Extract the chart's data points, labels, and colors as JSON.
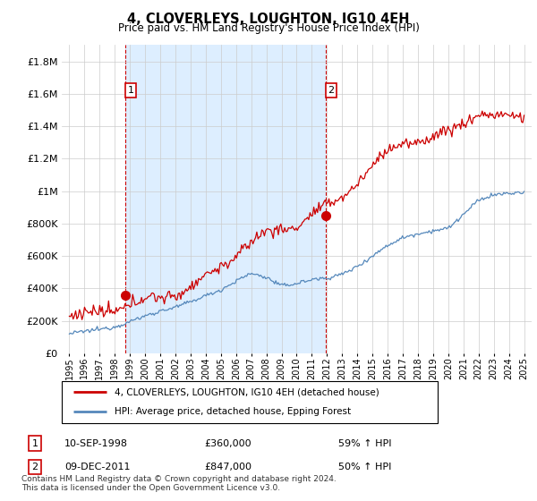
{
  "title": "4, CLOVERLEYS, LOUGHTON, IG10 4EH",
  "subtitle": "Price paid vs. HM Land Registry's House Price Index (HPI)",
  "legend_line1": "4, CLOVERLEYS, LOUGHTON, IG10 4EH (detached house)",
  "legend_line2": "HPI: Average price, detached house, Epping Forest",
  "annotation1_label": "1",
  "annotation1_date": "10-SEP-1998",
  "annotation1_price": "£360,000",
  "annotation1_hpi": "59% ↑ HPI",
  "annotation2_label": "2",
  "annotation2_date": "09-DEC-2011",
  "annotation2_price": "£847,000",
  "annotation2_hpi": "50% ↑ HPI",
  "footer": "Contains HM Land Registry data © Crown copyright and database right 2024.\nThis data is licensed under the Open Government Licence v3.0.",
  "red_color": "#cc0000",
  "blue_color": "#5588bb",
  "vline_color": "#cc0000",
  "grid_color": "#cccccc",
  "bg_color": "#ddeeff",
  "ylim": [
    0,
    1900000
  ],
  "yticks": [
    0,
    200000,
    400000,
    600000,
    800000,
    1000000,
    1200000,
    1400000,
    1600000,
    1800000
  ],
  "sale1_x": 1998.7,
  "sale1_y": 360000,
  "sale2_x": 2011.92,
  "sale2_y": 847000,
  "xlim_left": 1994.5,
  "xlim_right": 2025.5
}
